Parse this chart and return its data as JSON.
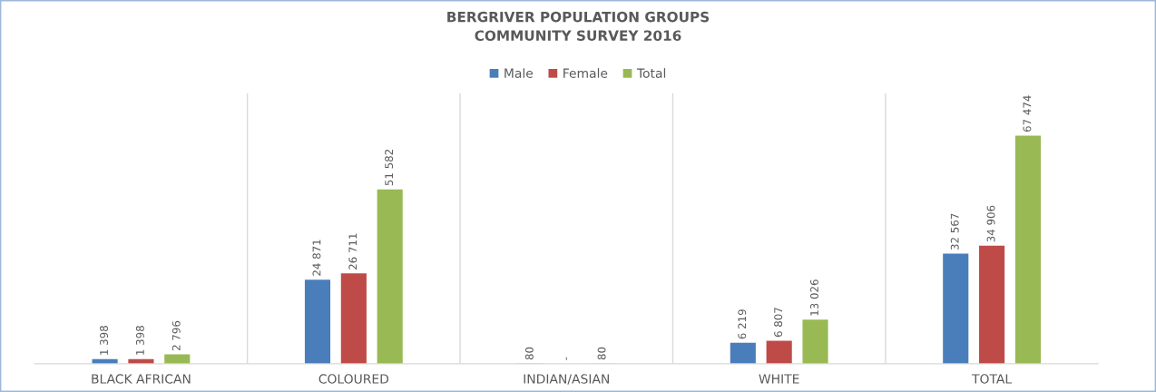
{
  "chart_data": {
    "type": "bar",
    "title": "BERGRIVER POPULATION GROUPS\nCOMMUNITY SURVEY 2016",
    "categories": [
      "BLACK AFRICAN",
      "COLOURED",
      "INDIAN/ASIAN",
      "WHITE",
      "TOTAL"
    ],
    "series": [
      {
        "name": "Male",
        "color": "#4a7ebb",
        "values": [
          1398,
          24871,
          80,
          6219,
          32567
        ],
        "value_labels": [
          "1 398",
          "24 871",
          "80",
          "6 219",
          "32 567"
        ]
      },
      {
        "name": "Female",
        "color": "#be4b48",
        "values": [
          1398,
          26711,
          0,
          6807,
          34906
        ],
        "value_labels": [
          "1 398",
          "26 711",
          "-",
          "6 807",
          "34 906"
        ]
      },
      {
        "name": "Total",
        "color": "#98b954",
        "values": [
          2796,
          51582,
          80,
          13026,
          67474
        ],
        "value_labels": [
          "2 796",
          "51 582",
          "80",
          "13 026",
          "67 474"
        ]
      }
    ],
    "ylim": [
      0,
      80000
    ],
    "grid": "x",
    "legend": "top",
    "tick_labels": "x"
  }
}
